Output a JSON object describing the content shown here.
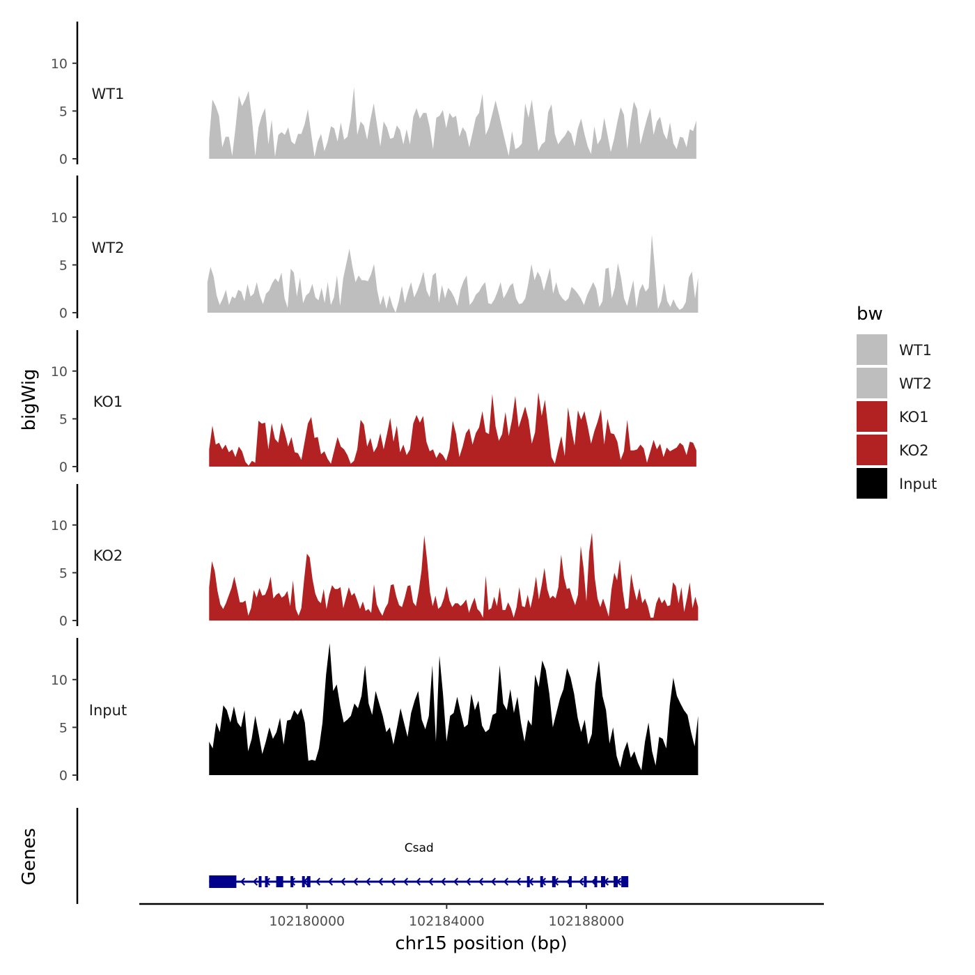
{
  "colors": {
    "WT1": "#bebebe",
    "WT2": "#bebebe",
    "KO1": "#b22222",
    "KO2": "#b22222",
    "Input": "#000000",
    "gene": "#00008b"
  },
  "chart_data": {
    "type": "area",
    "x_label": "chr15 position (bp)",
    "y_label": "bigWig",
    "genes_label": "Genes",
    "legend_title": "bw",
    "legend": [
      "WT1",
      "WT2",
      "KO1",
      "KO2",
      "Input"
    ],
    "xlim": [
      102175200,
      102194800
    ],
    "x_ticks": [
      102180000,
      102184000,
      102188000
    ],
    "x_tick_labels": [
      "102180000",
      "102184000",
      "102188000"
    ],
    "ylim": [
      0,
      14
    ],
    "y_ticks": [
      0,
      5,
      10
    ],
    "y_tick_labels": [
      "0",
      "5",
      "10"
    ],
    "data_range": [
      102177200,
      102191200
    ],
    "series": [
      {
        "name": "WT1",
        "start": 102177200,
        "end": 102191150,
        "values": [
          2,
          6.2,
          5.5,
          4.5,
          1.2,
          2.3,
          2.3,
          0.3,
          3.2,
          6.6,
          5.5,
          6.2,
          7.1,
          4.2,
          0.3,
          3.3,
          4.5,
          5.3,
          1.5,
          4.1,
          0.2,
          2.5,
          2.8,
          2.5,
          3.3,
          1.8,
          1.5,
          2.6,
          2.6,
          3.6,
          5.2,
          2.6,
          0.2,
          1.8,
          2.6,
          0.8,
          1.8,
          3.4,
          3.2,
          1.8,
          3.8,
          2,
          2.3,
          4.2,
          7.5,
          2.5,
          3.9,
          3.5,
          2,
          4.1,
          5.8,
          3.5,
          1.3,
          3.9,
          3.3,
          2.1,
          2.2,
          3.5,
          3,
          1.5,
          3.1,
          1.5,
          4.4,
          5.3,
          4.2,
          4.8,
          4.8,
          3.3,
          1,
          4.3,
          4.5,
          5.1,
          3.2,
          4.8,
          4.3,
          4.5,
          2.3,
          3.3,
          2.8,
          1.2,
          2.7,
          4.3,
          4.8,
          6.8,
          2.5,
          3.3,
          4.7,
          6.1,
          4.7,
          3.2,
          1.7,
          0.3,
          2.9,
          1,
          1.2,
          1.6,
          5.8,
          4.3,
          6.2,
          3.5,
          0.8,
          1.5,
          1.8,
          4.9,
          5.7,
          2.6,
          1.5,
          2,
          2.4,
          3,
          2.6,
          1.3,
          3.2,
          4.2,
          2.6,
          1.3,
          0.5,
          3.4,
          1.5,
          2.1,
          4.3,
          2.5,
          0.7,
          2.1,
          3.9,
          5.4,
          4.6,
          1,
          3.9,
          6,
          5.2,
          1.5,
          2.9,
          4.2,
          5.3,
          2.5,
          3.9,
          4.4,
          2.7,
          2,
          3.8,
          1.6,
          1,
          2.3,
          2.2,
          1.2,
          3.1,
          2.9,
          4
        ]
      },
      {
        "name": "WT2",
        "start": 102177150,
        "end": 102191200,
        "values": [
          3.2,
          4.8,
          3.8,
          1.8,
          0.8,
          1.5,
          2.4,
          0.8,
          1.7,
          1.5,
          2.4,
          2.2,
          1.2,
          3,
          1.7,
          2,
          3.2,
          1.8,
          0.9,
          2,
          2.3,
          3.1,
          3.6,
          3.2,
          4.2,
          1.5,
          0.5,
          4.6,
          4.2,
          1.7,
          3.7,
          1,
          1.8,
          2.1,
          3,
          1.6,
          1.3,
          2.6,
          1,
          3.2,
          0.8,
          1.6,
          3.9,
          0.7,
          3.6,
          5.1,
          6.7,
          4.8,
          3.2,
          3.9,
          3.4,
          3.4,
          3.3,
          4,
          5.1,
          2.4,
          0.8,
          1.8,
          0.4,
          1.8,
          0.7,
          0,
          1.2,
          2.8,
          1,
          2.2,
          3.2,
          1.6,
          2.3,
          3.2,
          4.3,
          2.3,
          1.6,
          3.9,
          4.2,
          1,
          2.9,
          1.5,
          2.6,
          2.2,
          1.6,
          0.7,
          2.4,
          3.3,
          3.9,
          0.8,
          1.2,
          1.9,
          2.2,
          2.8,
          3.2,
          1,
          0.9,
          1.4,
          2.2,
          3.2,
          1.5,
          2.1,
          2.8,
          3.1,
          1.5,
          0.9,
          1,
          1.5,
          3.1,
          5.1,
          3.4,
          4.3,
          3.7,
          2.3,
          3.5,
          4.7,
          2,
          3.2,
          2,
          1.5,
          1.2,
          1.5,
          2.7,
          2.4,
          2,
          1.5,
          0.8,
          1.8,
          2.5,
          3.2,
          2.5,
          0.6,
          1.2,
          4.6,
          4.7,
          1.5,
          2.6,
          5.2,
          3.7,
          1.5,
          0.7,
          2.1,
          3.4,
          0.5,
          2.3,
          3,
          2.2,
          2.6,
          8.2,
          4.6,
          0.4,
          1.2,
          3.1,
          1.2,
          0.6,
          1.4,
          0.7,
          0.3,
          0.5,
          1.1,
          3.7,
          4.3,
          1.5,
          3.7
        ]
      },
      {
        "name": "KO1",
        "start": 102177200,
        "end": 102191150,
        "values": [
          1.8,
          4.3,
          2.3,
          2.5,
          1.8,
          2.3,
          1.5,
          1.8,
          1,
          2.1,
          1.6,
          0.5,
          0.1,
          0.6,
          0.4,
          4.8,
          4.5,
          4.6,
          1.8,
          4.5,
          2.9,
          2.5,
          4.6,
          3.5,
          2.1,
          3.1,
          1.5,
          1.4,
          0.7,
          2.6,
          4.5,
          5.2,
          3,
          3.1,
          1.3,
          1.6,
          0.8,
          0.3,
          1.7,
          3.1,
          2.1,
          1.8,
          1.2,
          0.3,
          0.6,
          1.8,
          4.9,
          4.4,
          2.1,
          3,
          1.5,
          2.1,
          3.5,
          1.8,
          3.4,
          5.1,
          2.6,
          4.3,
          1.5,
          2.3,
          1.2,
          1.8,
          4.5,
          5.4,
          4.6,
          5.3,
          2.6,
          1.6,
          1.8,
          0.9,
          1.5,
          1.2,
          0.6,
          1.8,
          4.8,
          3.4,
          1,
          2.1,
          3.5,
          4,
          2.3,
          3.5,
          4.1,
          5.8,
          3.6,
          3.4,
          7.6,
          4.2,
          2.7,
          3.4,
          5.7,
          3.2,
          4.9,
          7.4,
          4.1,
          5.2,
          6.3,
          4.9,
          2.4,
          3.6,
          7.8,
          5.3,
          7,
          4,
          1,
          0.3,
          1.8,
          3.2,
          1.1,
          6.2,
          4,
          2.2,
          5.9,
          4.9,
          5.8,
          4.2,
          2.4,
          3.7,
          4.7,
          6,
          2.3,
          5,
          3.5,
          3.4,
          2.6,
          0.7,
          1.6,
          4.9,
          1.7,
          1.7,
          1.8,
          2.3,
          1.9,
          0.4,
          1.6,
          2.8,
          1.8,
          2.4,
          1,
          2,
          1.6,
          1.8,
          2,
          2.5,
          2.2,
          1.2,
          2.6,
          2.5,
          1.7
        ]
      },
      {
        "name": "KO2",
        "start": 102177200,
        "end": 102191200,
        "values": [
          3.5,
          6.2,
          5.2,
          3.1,
          1.7,
          1.2,
          1.8,
          2.6,
          3.4,
          4.6,
          3.3,
          1.9,
          1.9,
          2.1,
          0.5,
          1.3,
          3.2,
          2.4,
          3.4,
          2.6,
          2.7,
          3.4,
          4.6,
          2.3,
          2.7,
          2.9,
          2.4,
          2.6,
          3.1,
          1.5,
          4.2,
          1.2,
          0.5,
          1.3,
          4.3,
          7,
          6.6,
          4.3,
          2.8,
          2.1,
          1.8,
          3.3,
          1.2,
          2.7,
          3.7,
          3.3,
          3.3,
          3.5,
          1.3,
          2.4,
          3.5,
          2.6,
          2.9,
          2.1,
          1.2,
          2,
          1,
          1.2,
          0.8,
          3.8,
          1.7,
          1,
          0.5,
          1.3,
          1.8,
          3.7,
          3.8,
          2.5,
          1.6,
          1.4,
          2.4,
          3.6,
          3.7,
          1.9,
          1.5,
          3.1,
          5.2,
          8.9,
          6.3,
          3,
          1.5,
          2.6,
          1.2,
          1.5,
          2.3,
          3.6,
          2.1,
          1.4,
          1.8,
          1.8,
          1.5,
          1.8,
          2.2,
          0.8,
          1.7,
          2.4,
          1.2,
          0.9,
          0.3,
          4.7,
          1.1,
          1.3,
          2.5,
          1.5,
          3.5,
          1.1,
          1.1,
          1.9,
          1.3,
          0.3,
          1.4,
          3.5,
          1.5,
          1.4,
          2.7,
          1.3,
          2.7,
          4.6,
          2.2,
          3.7,
          5.5,
          3.3,
          2.3,
          2.6,
          2.3,
          3.5,
          6.9,
          4.5,
          3.3,
          3.4,
          2.4,
          1.6,
          2.7,
          7.8,
          5.5,
          2,
          7.2,
          9.2,
          4.5,
          2.3,
          1.4,
          2.3,
          1.4,
          0.4,
          3.3,
          5,
          4.2,
          6.4,
          3.2,
          1.2,
          1.3,
          4.9,
          3.3,
          2.1,
          3.4,
          1.8,
          2.3,
          1.5,
          0.3,
          0.3,
          1.8,
          2.5,
          1.8,
          2.2,
          1.5,
          1.6,
          4,
          3.6,
          1.8,
          3.5,
          0.9,
          2.3,
          4,
          1.3,
          2.5,
          1.4
        ]
      },
      {
        "name": "Input",
        "start": 102177200,
        "end": 102191200,
        "values": [
          3.5,
          2.8,
          5.5,
          4.5,
          7.3,
          6.8,
          5.5,
          7.2,
          5.5,
          5,
          6.8,
          2.5,
          3.8,
          6.2,
          4.3,
          2.2,
          3.5,
          5,
          3.8,
          4.5,
          6,
          3.2,
          5.7,
          5.8,
          6.8,
          6.3,
          7,
          5.5,
          1.5,
          1.6,
          1.5,
          2.8,
          5.5,
          10.5,
          13.8,
          8.8,
          9.5,
          7.2,
          5.5,
          5.8,
          6.2,
          7.5,
          7,
          8.3,
          11.5,
          7.5,
          6.3,
          8.8,
          7.5,
          6.2,
          4.5,
          5,
          3.2,
          5,
          7,
          5.5,
          4,
          6.5,
          7.8,
          8.8,
          5.8,
          4.8,
          6.2,
          11.5,
          3.5,
          12.5,
          8.5,
          3.5,
          6.2,
          6.5,
          8.2,
          6.5,
          5,
          5.3,
          8.5,
          6.8,
          7.8,
          5.2,
          4.5,
          4.8,
          6.3,
          6.5,
          11.5,
          7.5,
          6.8,
          9,
          6.5,
          8.2,
          5.5,
          3.5,
          5.8,
          5.2,
          10.5,
          9.2,
          12,
          11,
          8.5,
          5,
          6.5,
          8,
          9,
          11.2,
          10.2,
          8.5,
          6,
          4.5,
          5.8,
          3.2,
          4.3,
          9.5,
          12,
          8.3,
          6.8,
          3.3,
          5,
          2,
          0.8,
          2.5,
          3.5,
          1.8,
          2.5,
          1.3,
          0.5,
          3.5,
          5.5,
          2.5,
          1,
          4,
          3.8,
          2.8,
          7.3,
          10.2,
          8.3,
          7.5,
          6.8,
          6.3,
          4.5,
          3,
          6.2
        ]
      }
    ],
    "gene": {
      "name": "Csad",
      "start": 102177200,
      "end": 102189200,
      "strand": "-",
      "exons": [
        [
          102177200,
          102177980
        ],
        [
          102178620,
          102178680
        ],
        [
          102178800,
          102178880
        ],
        [
          102179120,
          102179320
        ],
        [
          102179530,
          102179610
        ],
        [
          102179860,
          102179920
        ],
        [
          102180000,
          102180100
        ],
        [
          102186300,
          102186360
        ],
        [
          102186680,
          102186760
        ],
        [
          102187020,
          102187120
        ],
        [
          102187500,
          102187580
        ],
        [
          102187930,
          102188010
        ],
        [
          102188230,
          102188300
        ],
        [
          102188420,
          102188540
        ],
        [
          102188780,
          102188900
        ],
        [
          102189000,
          102189200
        ]
      ]
    }
  }
}
